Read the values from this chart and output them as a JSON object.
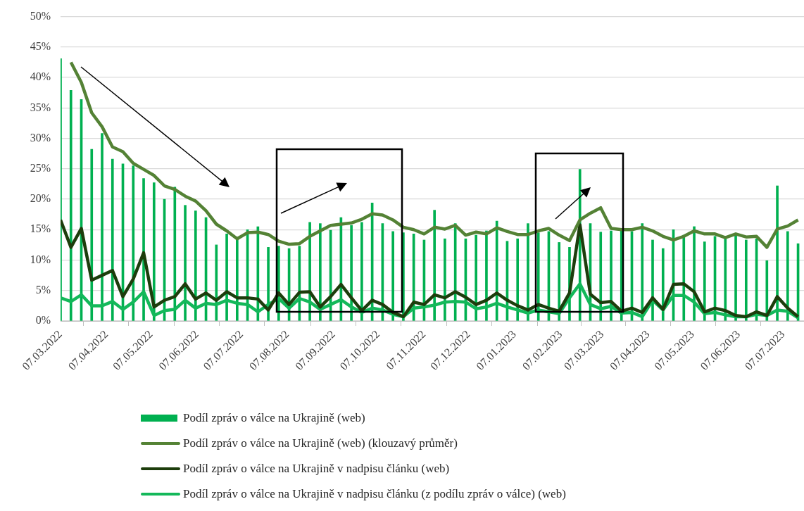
{
  "chart_data": {
    "type": "bar",
    "x": [
      "2022-03-07",
      "2022-03-14",
      "2022-03-21",
      "2022-03-28",
      "2022-04-04",
      "2022-04-11",
      "2022-04-18",
      "2022-04-25",
      "2022-05-02",
      "2022-05-09",
      "2022-05-16",
      "2022-05-23",
      "2022-05-30",
      "2022-06-06",
      "2022-06-13",
      "2022-06-20",
      "2022-06-27",
      "2022-07-04",
      "2022-07-11",
      "2022-07-18",
      "2022-07-25",
      "2022-08-01",
      "2022-08-08",
      "2022-08-15",
      "2022-08-22",
      "2022-08-29",
      "2022-09-05",
      "2022-09-12",
      "2022-09-19",
      "2022-09-26",
      "2022-10-03",
      "2022-10-10",
      "2022-10-17",
      "2022-10-24",
      "2022-10-31",
      "2022-11-07",
      "2022-11-14",
      "2022-11-21",
      "2022-11-28",
      "2022-12-05",
      "2022-12-12",
      "2022-12-19",
      "2022-12-26",
      "2023-01-02",
      "2023-01-09",
      "2023-01-16",
      "2023-01-23",
      "2023-01-30",
      "2023-02-06",
      "2023-02-13",
      "2023-02-20",
      "2023-02-27",
      "2023-03-06",
      "2023-03-13",
      "2023-03-20",
      "2023-03-27",
      "2023-04-03",
      "2023-04-10",
      "2023-04-17",
      "2023-04-24",
      "2023-05-01",
      "2023-05-08",
      "2023-05-15",
      "2023-05-22",
      "2023-05-29",
      "2023-06-05",
      "2023-06-12",
      "2023-06-19",
      "2023-06-26",
      "2023-07-03",
      "2023-07-10",
      "2023-07-17"
    ],
    "series": [
      {
        "name": "Podíl zpráv o válce na Ukrajině (web)",
        "color": "#00b050",
        "values": [
          43.1,
          37.9,
          36.4,
          28.2,
          30.8,
          26.6,
          25.8,
          25.5,
          23.4,
          22.7,
          20.0,
          22.0,
          19.0,
          18.1,
          17.0,
          12.5,
          14.3,
          13.5,
          15.0,
          15.5,
          12.1,
          12.3,
          11.9,
          12.3,
          16.2,
          16.0,
          14.9,
          17.0,
          15.7,
          16.2,
          19.4,
          16.0,
          14.7,
          14.5,
          14.3,
          13.3,
          18.2,
          13.5,
          16.0,
          13.5,
          14.1,
          14.8,
          16.4,
          13.1,
          13.5,
          16.0,
          14.5,
          14.7,
          12.9,
          12.1,
          24.9,
          16.0,
          14.6,
          14.8,
          14.8,
          14.7,
          16.0,
          13.3,
          11.9,
          15.0,
          14.1,
          15.5,
          13.0,
          13.9,
          13.5,
          14.1,
          13.3,
          13.5,
          9.9,
          22.2,
          14.7,
          12.7
        ]
      },
      {
        "name": "Podíl zpráv o válce na Ukrajině (web) (klouzavý průměr)",
        "type": "line",
        "color": "#548235",
        "values": [
          null,
          42.5,
          39.2,
          34.2,
          31.9,
          28.6,
          27.8,
          25.9,
          24.9,
          23.9,
          22.2,
          21.6,
          20.5,
          19.7,
          18.1,
          15.9,
          14.8,
          13.5,
          14.5,
          14.6,
          14.2,
          13.1,
          12.6,
          12.7,
          13.9,
          14.8,
          15.7,
          15.9,
          16.1,
          16.7,
          17.6,
          17.4,
          16.6,
          15.4,
          15.0,
          14.3,
          15.4,
          15.1,
          15.7,
          14.1,
          14.6,
          14.3,
          15.3,
          14.7,
          14.2,
          14.2,
          14.8,
          15.2,
          14.1,
          13.2,
          16.6,
          17.7,
          18.6,
          15.2,
          15.0,
          15.0,
          15.4,
          14.8,
          13.9,
          13.3,
          13.9,
          14.8,
          14.3,
          14.3,
          13.7,
          14.3,
          13.8,
          13.9,
          12.1,
          15.1,
          15.6,
          16.6
        ]
      },
      {
        "name": "Podíl zpráv o válce na Ukrajině v nadpisu článku (web)",
        "type": "line",
        "color": "#1d3d0c",
        "values": [
          16.6,
          12.1,
          15.2,
          6.7,
          7.5,
          8.3,
          4.0,
          6.9,
          11.2,
          2.3,
          3.4,
          4.0,
          6.1,
          3.6,
          4.6,
          3.4,
          4.8,
          3.8,
          3.8,
          3.6,
          1.8,
          4.6,
          2.7,
          4.7,
          4.8,
          2.3,
          4.0,
          6.0,
          3.8,
          1.7,
          3.4,
          2.7,
          1.4,
          0.7,
          3.1,
          2.7,
          4.3,
          3.8,
          4.8,
          3.9,
          2.7,
          3.4,
          4.6,
          3.4,
          2.5,
          1.8,
          2.7,
          2.1,
          1.6,
          4.6,
          15.8,
          4.4,
          3.0,
          3.2,
          1.6,
          2.1,
          1.4,
          3.8,
          1.9,
          6.0,
          6.1,
          4.8,
          1.5,
          2.1,
          1.7,
          0.9,
          0.7,
          1.5,
          0.9,
          4.0,
          2.1,
          0.7
        ]
      },
      {
        "name": "Podíl zpráv o válce na Ukrajině v nadpisu článku (z podílu zpráv o válce) (web)",
        "type": "line",
        "color": "#14b85a",
        "values": [
          3.8,
          3.2,
          4.3,
          2.5,
          2.5,
          3.2,
          1.9,
          3.1,
          4.8,
          0.9,
          1.7,
          1.9,
          3.4,
          2.1,
          2.9,
          2.7,
          3.4,
          2.9,
          2.7,
          1.5,
          2.7,
          3.7,
          2.1,
          3.7,
          3.1,
          1.9,
          2.7,
          3.5,
          2.3,
          1.4,
          2.1,
          1.8,
          1.1,
          0.7,
          2.1,
          2.3,
          2.6,
          3.1,
          3.2,
          3.1,
          2.0,
          2.3,
          2.9,
          2.3,
          1.8,
          1.3,
          1.8,
          1.5,
          1.2,
          3.8,
          6.1,
          2.7,
          2.0,
          2.4,
          1.3,
          1.4,
          0.7,
          3.4,
          1.8,
          4.2,
          4.2,
          3.1,
          1.2,
          1.4,
          1.0,
          0.7,
          0.7,
          1.1,
          0.9,
          1.8,
          1.6,
          0.5
        ]
      }
    ],
    "xlim": [
      "2022-03-07",
      "2023-07-21"
    ],
    "xticks": [
      {
        "value": "2022-03-07",
        "label": "07.03.2022"
      },
      {
        "value": "2022-04-07",
        "label": "07.04.2022"
      },
      {
        "value": "2022-05-07",
        "label": "07.05.2022"
      },
      {
        "value": "2022-06-07",
        "label": "07.06.2022"
      },
      {
        "value": "2022-07-07",
        "label": "07.07.2022"
      },
      {
        "value": "2022-08-07",
        "label": "07.08.2022"
      },
      {
        "value": "2022-09-07",
        "label": "07.09.2022"
      },
      {
        "value": "2022-10-07",
        "label": "07.10.2022"
      },
      {
        "value": "2022-11-07",
        "label": "07.11.2022"
      },
      {
        "value": "2022-12-07",
        "label": "07.12.2022"
      },
      {
        "value": "2023-01-07",
        "label": "07.01.2023"
      },
      {
        "value": "2023-02-07",
        "label": "07.02.2023"
      },
      {
        "value": "2023-03-07",
        "label": "07.03.2023"
      },
      {
        "value": "2023-04-07",
        "label": "07.04.2023"
      },
      {
        "value": "2023-05-07",
        "label": "07.05.2023"
      },
      {
        "value": "2023-06-07",
        "label": "07.06.2023"
      },
      {
        "value": "2023-07-07",
        "label": "07.07.2023"
      }
    ],
    "ylim": [
      0,
      50
    ],
    "yticks": [
      {
        "value": 0,
        "label": "0%"
      },
      {
        "value": 5,
        "label": "5%"
      },
      {
        "value": 10,
        "label": "10%"
      },
      {
        "value": 15,
        "label": "15%"
      },
      {
        "value": 20,
        "label": "20%"
      },
      {
        "value": 25,
        "label": "25%"
      },
      {
        "value": 30,
        "label": "30%"
      },
      {
        "value": 35,
        "label": "35%"
      },
      {
        "value": 40,
        "label": "40%"
      },
      {
        "value": 45,
        "label": "45%"
      },
      {
        "value": 50,
        "label": "50%"
      }
    ],
    "grid": "y",
    "legend": "bottom",
    "marker": "none",
    "line_style": "solid"
  }
}
